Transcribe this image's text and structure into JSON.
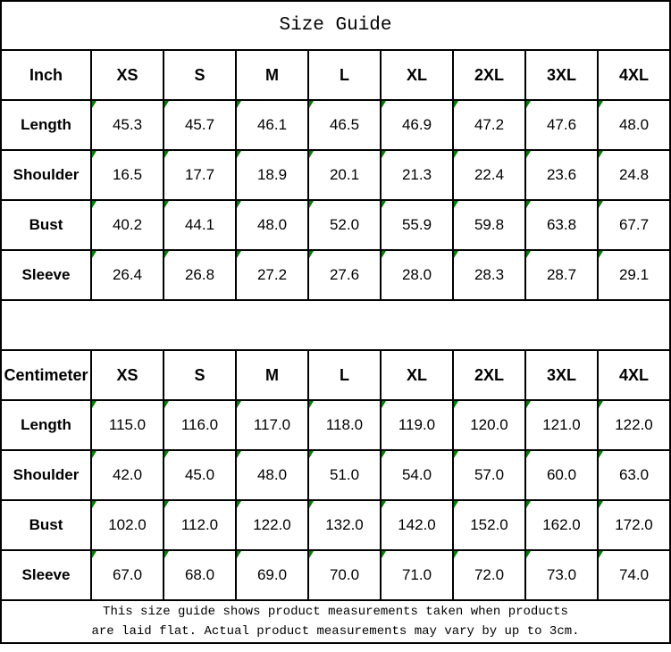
{
  "title": "Size Guide",
  "colors": {
    "border": "#000000",
    "cell_flag_green": "#008000",
    "background": "#ffffff",
    "text": "#000000"
  },
  "tables": [
    {
      "unit_label": "Inch",
      "sizes": [
        "XS",
        "S",
        "M",
        "L",
        "XL",
        "2XL",
        "3XL",
        "4XL"
      ],
      "rows": [
        {
          "label": "Length",
          "values": [
            "45.3",
            "45.7",
            "46.1",
            "46.5",
            "46.9",
            "47.2",
            "47.6",
            "48.0"
          ]
        },
        {
          "label": "Shoulder",
          "values": [
            "16.5",
            "17.7",
            "18.9",
            "20.1",
            "21.3",
            "22.4",
            "23.6",
            "24.8"
          ]
        },
        {
          "label": "Bust",
          "values": [
            "40.2",
            "44.1",
            "48.0",
            "52.0",
            "55.9",
            "59.8",
            "63.8",
            "67.7"
          ]
        },
        {
          "label": "Sleeve",
          "values": [
            "26.4",
            "26.8",
            "27.2",
            "27.6",
            "28.0",
            "28.3",
            "28.7",
            "29.1"
          ]
        }
      ]
    },
    {
      "unit_label": "Centimeter",
      "sizes": [
        "XS",
        "S",
        "M",
        "L",
        "XL",
        "2XL",
        "3XL",
        "4XL"
      ],
      "rows": [
        {
          "label": "Length",
          "values": [
            "115.0",
            "116.0",
            "117.0",
            "118.0",
            "119.0",
            "120.0",
            "121.0",
            "122.0"
          ]
        },
        {
          "label": "Shoulder",
          "values": [
            "42.0",
            "45.0",
            "48.0",
            "51.0",
            "54.0",
            "57.0",
            "60.0",
            "63.0"
          ]
        },
        {
          "label": "Bust",
          "values": [
            "102.0",
            "112.0",
            "122.0",
            "132.0",
            "142.0",
            "152.0",
            "162.0",
            "172.0"
          ]
        },
        {
          "label": "Sleeve",
          "values": [
            "67.0",
            "68.0",
            "69.0",
            "70.0",
            "71.0",
            "72.0",
            "73.0",
            "74.0"
          ]
        }
      ]
    }
  ],
  "footer": {
    "line1": "This size guide shows product measurements taken when products",
    "line2": "are laid flat. Actual product measurements may vary by up to 3cm."
  }
}
